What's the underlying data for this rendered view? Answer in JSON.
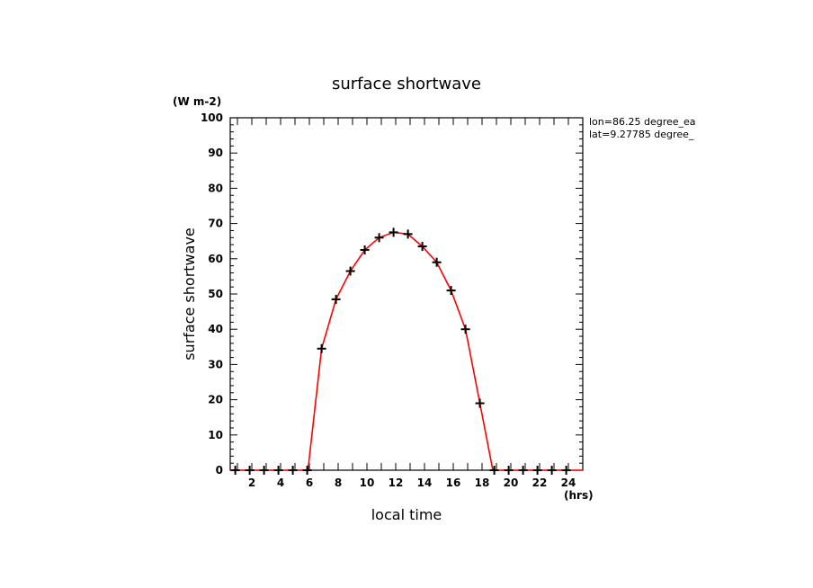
{
  "chart_data": {
    "type": "line",
    "title": "surface shortwave",
    "units": "(W m-2)",
    "ylabel": "surface shortwave",
    "xlabel": "local time",
    "xunits": "(hrs)",
    "annotation": [
      "lon=86.25 degree_ea",
      "lat=9.27785 degree_"
    ],
    "xlim": [
      0.5,
      25
    ],
    "ylim": [
      0,
      100
    ],
    "xticks": [
      2,
      4,
      6,
      8,
      10,
      12,
      14,
      16,
      18,
      20,
      22,
      24
    ],
    "yticks": [
      0,
      10,
      20,
      30,
      40,
      50,
      60,
      70,
      80,
      90,
      100
    ],
    "grid": false,
    "colors": {
      "line": "#ff0000",
      "markers": "#000000"
    },
    "line": {
      "x": [
        0.5,
        1,
        2,
        3,
        4,
        5,
        5.9,
        6.85,
        7.85,
        8.85,
        9.85,
        10.85,
        11.85,
        12.85,
        13.85,
        14.85,
        15.85,
        16.85,
        17.85,
        18.75,
        20,
        21,
        22,
        23,
        24,
        25
      ],
      "y": [
        0,
        0,
        0,
        0,
        0,
        0,
        0,
        34.5,
        48.5,
        56.5,
        62.5,
        66,
        67.5,
        67,
        63.5,
        59,
        51,
        40,
        19,
        0,
        0,
        0,
        0,
        0,
        0,
        0
      ]
    },
    "points": {
      "x": [
        0.85,
        1.85,
        2.85,
        3.85,
        4.85,
        5.85,
        6.85,
        7.85,
        8.85,
        9.85,
        10.85,
        11.85,
        12.85,
        13.85,
        14.85,
        15.85,
        16.85,
        17.85,
        18.85,
        19.85,
        20.85,
        21.85,
        22.85,
        23.85
      ],
      "y": [
        0,
        0,
        0,
        0,
        0,
        0,
        34.5,
        48.5,
        56.5,
        62.5,
        66,
        67.5,
        67,
        63.5,
        59,
        51,
        40,
        19,
        0,
        0,
        0,
        0,
        0,
        0
      ]
    }
  }
}
